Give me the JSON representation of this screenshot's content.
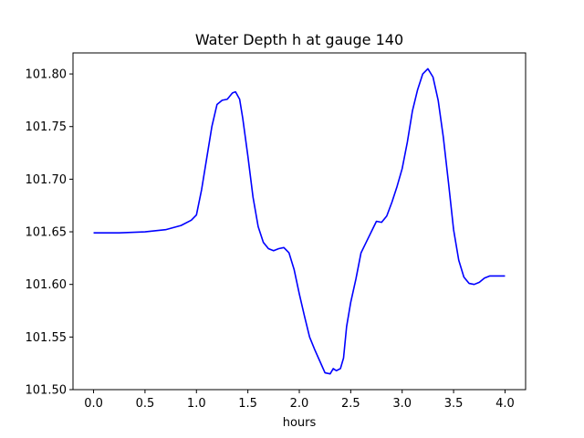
{
  "chart_data": {
    "type": "line",
    "title": "Water Depth h at gauge 140",
    "xlabel": "hours",
    "ylabel": "",
    "xlim": [
      -0.2,
      4.2
    ],
    "ylim": [
      101.5,
      101.82
    ],
    "xticks": [
      0.0,
      0.5,
      1.0,
      1.5,
      2.0,
      2.5,
      3.0,
      3.5,
      4.0
    ],
    "xtick_labels": [
      "0.0",
      "0.5",
      "1.0",
      "1.5",
      "2.0",
      "2.5",
      "3.0",
      "3.5",
      "4.0"
    ],
    "yticks": [
      101.5,
      101.55,
      101.6,
      101.65,
      101.7,
      101.75,
      101.8
    ],
    "ytick_labels": [
      "101.50",
      "101.55",
      "101.60",
      "101.65",
      "101.70",
      "101.75",
      "101.80"
    ],
    "grid": false,
    "series": [
      {
        "color": "#0000ff",
        "x": [
          0.0,
          0.25,
          0.5,
          0.7,
          0.85,
          0.95,
          1.0,
          1.05,
          1.1,
          1.15,
          1.2,
          1.25,
          1.3,
          1.35,
          1.38,
          1.42,
          1.45,
          1.5,
          1.55,
          1.6,
          1.65,
          1.7,
          1.75,
          1.8,
          1.85,
          1.9,
          1.95,
          2.0,
          2.05,
          2.1,
          2.15,
          2.2,
          2.25,
          2.3,
          2.33,
          2.36,
          2.4,
          2.43,
          2.46,
          2.5,
          2.55,
          2.6,
          2.65,
          2.7,
          2.75,
          2.8,
          2.85,
          2.9,
          2.95,
          3.0,
          3.05,
          3.1,
          3.15,
          3.2,
          3.25,
          3.3,
          3.35,
          3.4,
          3.45,
          3.5,
          3.55,
          3.6,
          3.65,
          3.7,
          3.75,
          3.8,
          3.85,
          3.9,
          3.95,
          4.0
        ],
        "y": [
          101.649,
          101.649,
          101.65,
          101.652,
          101.656,
          101.661,
          101.666,
          101.69,
          101.72,
          101.75,
          101.771,
          101.775,
          101.776,
          101.782,
          101.783,
          101.776,
          101.758,
          101.722,
          101.683,
          101.655,
          101.64,
          101.634,
          101.632,
          101.634,
          101.635,
          101.63,
          101.614,
          101.591,
          101.57,
          101.55,
          101.538,
          101.527,
          101.516,
          101.515,
          101.52,
          101.518,
          101.52,
          101.53,
          101.56,
          101.583,
          101.605,
          101.63,
          101.64,
          101.65,
          101.66,
          101.659,
          101.665,
          101.678,
          101.693,
          101.71,
          101.735,
          101.765,
          101.785,
          101.8,
          101.805,
          101.797,
          101.775,
          101.74,
          101.697,
          101.652,
          101.623,
          101.607,
          101.601,
          101.6,
          101.602,
          101.606,
          101.608,
          101.608,
          101.608,
          101.608
        ]
      }
    ]
  }
}
